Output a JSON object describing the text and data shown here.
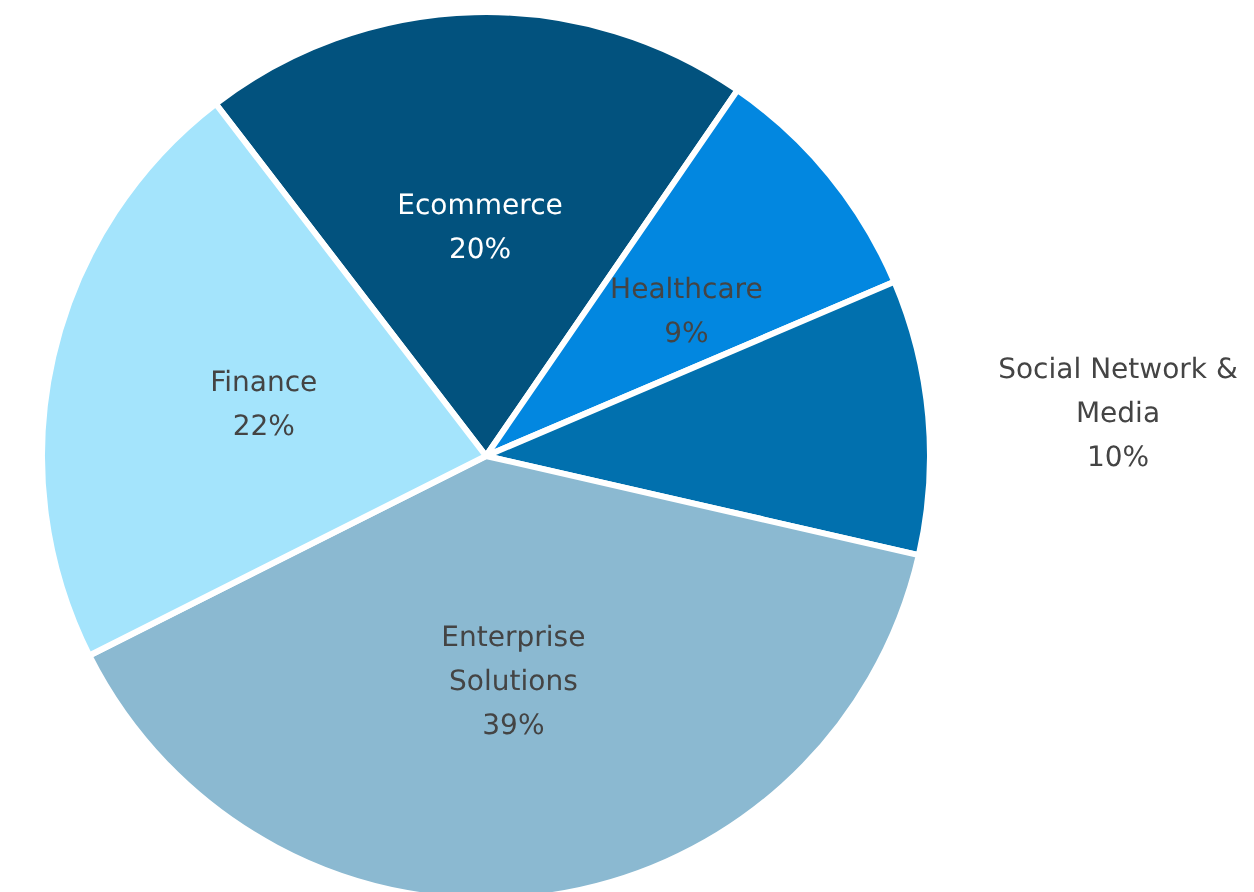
{
  "chart_data": {
    "type": "pie",
    "categories": [
      "Ecommerce",
      "Healthcare",
      "Social Network &\nMedia",
      "Enterprise\nSolutions",
      "Finance"
    ],
    "values": [
      20,
      9,
      10,
      39,
      22
    ],
    "colors": [
      "#02527e",
      "#0287e0",
      "#0170ae",
      "#8bb9d1",
      "#a4e4fc"
    ],
    "value_labels": [
      "20%",
      "9%",
      "10%",
      "39%",
      "22%"
    ],
    "legend": false
  }
}
